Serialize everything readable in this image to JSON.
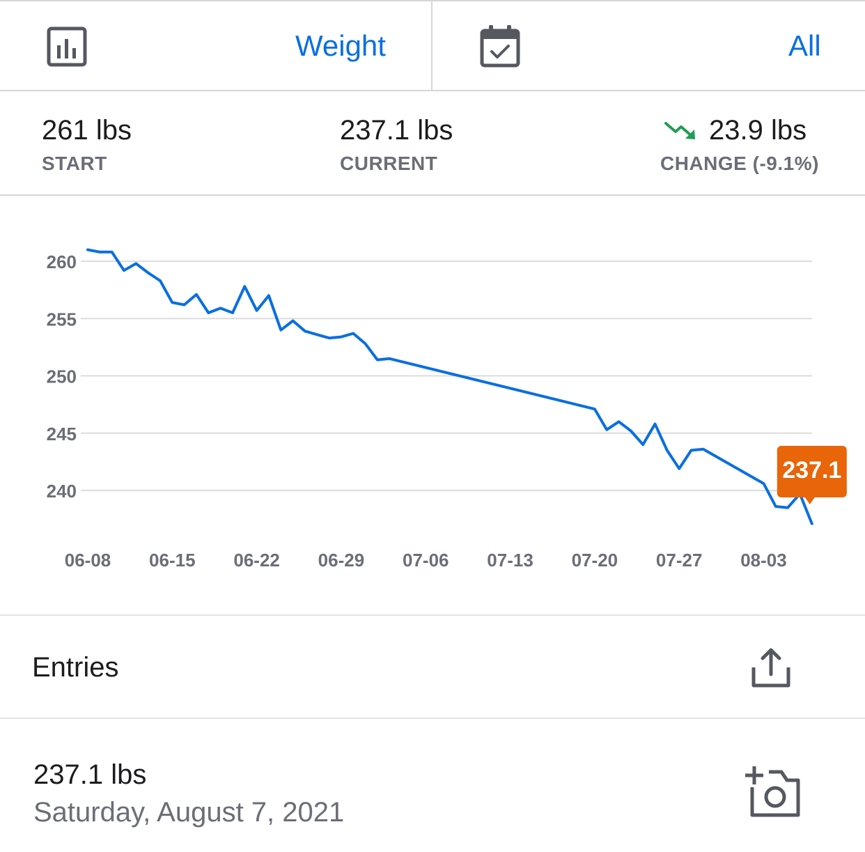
{
  "toolbar": {
    "chart_icon": "bar-chart-icon",
    "metric_label": "Weight",
    "calendar_icon": "calendar-check-icon",
    "range_label": "All"
  },
  "stats": {
    "start_value": "261 lbs",
    "start_label": "START",
    "current_value": "237.1 lbs",
    "current_label": "CURRENT",
    "change_icon": "trend-down-icon",
    "change_value": "23.9 lbs",
    "change_label": "CHANGE (-9.1%)"
  },
  "colors": {
    "accent": "#0a6fe0",
    "line": "#0a6fe0",
    "tooltip": "#e8650a",
    "trend_down": "#1f9d55",
    "muted": "#6b6e76",
    "grid": "#dcdcdf"
  },
  "chart_data": {
    "type": "line",
    "title": "",
    "xlabel": "",
    "ylabel": "",
    "ylim": [
      235.5,
      262.5
    ],
    "yticks": [
      260,
      255,
      250,
      245,
      240
    ],
    "xticks": [
      "06-08",
      "06-15",
      "06-22",
      "06-29",
      "07-06",
      "07-13",
      "07-20",
      "07-27",
      "08-03"
    ],
    "grid": true,
    "series": [
      {
        "name": "",
        "x": [
          "2021-06-08",
          "2021-06-09",
          "2021-06-10",
          "2021-06-11",
          "2021-06-12",
          "2021-06-13",
          "2021-06-14",
          "2021-06-15",
          "2021-06-16",
          "2021-06-17",
          "2021-06-18",
          "2021-06-19",
          "2021-06-20",
          "2021-06-21",
          "2021-06-22",
          "2021-06-23",
          "2021-06-24",
          "2021-06-25",
          "2021-06-26",
          "2021-06-27",
          "2021-06-28",
          "2021-06-29",
          "2021-06-30",
          "2021-07-01",
          "2021-07-02",
          "2021-07-03",
          "2021-07-20",
          "2021-07-21",
          "2021-07-22",
          "2021-07-23",
          "2021-07-24",
          "2021-07-25",
          "2021-07-26",
          "2021-07-27",
          "2021-07-28",
          "2021-07-29",
          "2021-08-03",
          "2021-08-04",
          "2021-08-05",
          "2021-08-06",
          "2021-08-07"
        ],
        "values": [
          261.0,
          260.8,
          260.8,
          259.2,
          259.8,
          259.0,
          258.3,
          256.4,
          256.2,
          257.1,
          255.5,
          255.9,
          255.5,
          257.8,
          255.7,
          257.0,
          254.0,
          254.8,
          253.9,
          253.6,
          253.3,
          253.4,
          253.7,
          252.8,
          251.4,
          251.5,
          247.1,
          245.3,
          246.0,
          245.2,
          244.0,
          245.8,
          243.5,
          241.9,
          243.5,
          243.6,
          240.6,
          238.6,
          238.5,
          239.7,
          237.1
        ]
      }
    ],
    "annotation": {
      "x": "2021-08-07",
      "value": 237.1,
      "label": "237.1"
    }
  },
  "entries": {
    "title": "Entries",
    "share_icon": "share-icon",
    "items": [
      {
        "value": "237.1 lbs",
        "date": "Saturday, August 7, 2021",
        "camera_icon": "add-photo-icon"
      }
    ]
  }
}
